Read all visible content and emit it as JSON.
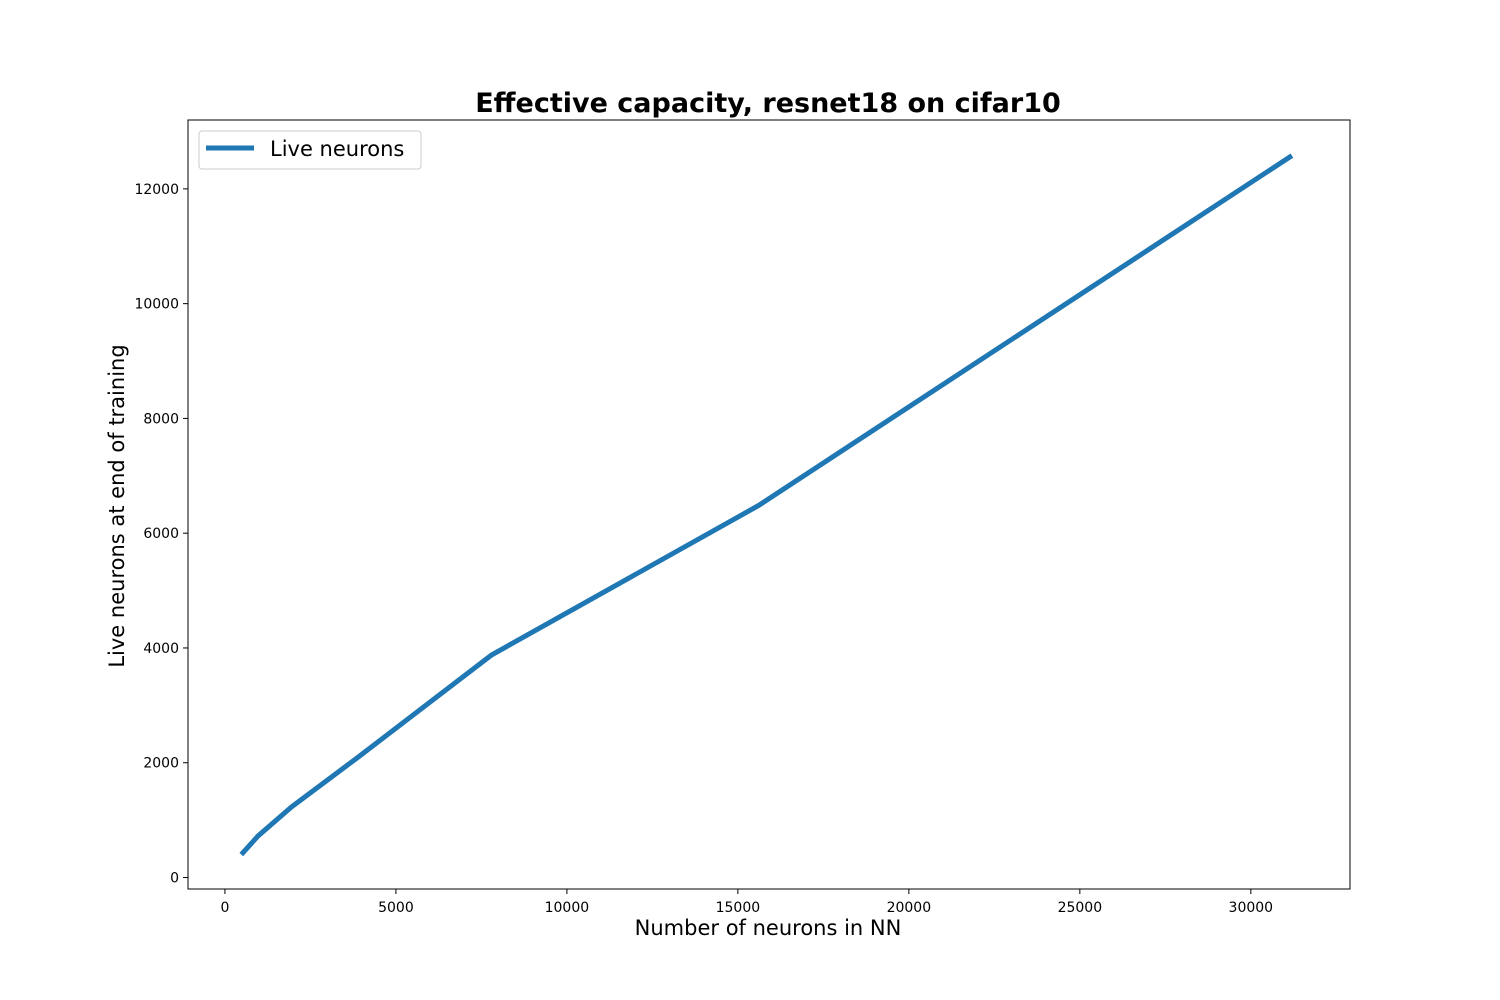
{
  "chart_data": {
    "type": "line",
    "title": "Effective capacity, resnet18 on cifar10",
    "xlabel": "Number of neurons in NN",
    "ylabel": "Live neurons at end of training",
    "xlim": [
      -1080,
      32900
    ],
    "ylim": [
      -200,
      13200
    ],
    "xticks": [
      0,
      5000,
      10000,
      15000,
      20000,
      25000,
      30000
    ],
    "yticks": [
      0,
      2000,
      4000,
      6000,
      8000,
      10000,
      12000
    ],
    "xtick_labels": [
      "0",
      "5000",
      "10000",
      "15000",
      "20000",
      "25000",
      "30000"
    ],
    "ytick_labels": [
      "0",
      "2000",
      "4000",
      "6000",
      "8000",
      "10000",
      "12000"
    ],
    "grid": false,
    "legend_position": "top-left",
    "series": [
      {
        "name": "Live neurons",
        "color": "#1f77b4",
        "x": [
          480,
          960,
          1950,
          3900,
          7800,
          15600,
          31200
        ],
        "y": [
          400,
          720,
          1230,
          2100,
          3880,
          6480,
          12580
        ]
      }
    ]
  }
}
